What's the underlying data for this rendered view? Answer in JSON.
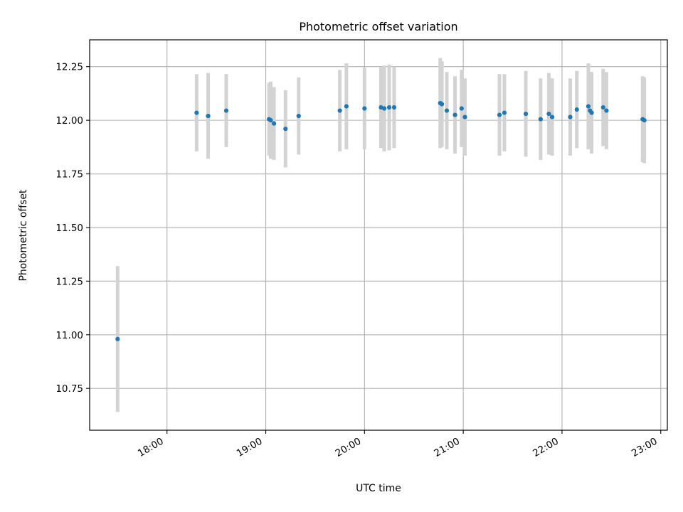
{
  "chart_data": {
    "type": "scatter",
    "title": "Photometric offset variation",
    "xlabel": "UTC time",
    "ylabel": "Photometric offset",
    "x_unit": "UTC hours",
    "xlim": [
      "17:13",
      "23:04"
    ],
    "ylim": [
      10.555,
      12.375
    ],
    "grid": true,
    "x_ticks": [
      "18:00",
      "19:00",
      "20:00",
      "21:00",
      "22:00",
      "23:00"
    ],
    "y_ticks": [
      "10.75",
      "11.00",
      "11.25",
      "11.50",
      "11.75",
      "12.00",
      "12.25"
    ],
    "marker_color": "#1f77b4",
    "errorbar_color": "#d3d3d3",
    "points": [
      {
        "x": "17:30",
        "y": 10.98,
        "yerr": 0.34
      },
      {
        "x": "18:18",
        "y": 12.035,
        "yerr": 0.18
      },
      {
        "x": "18:25",
        "y": 12.02,
        "yerr": 0.2
      },
      {
        "x": "18:36",
        "y": 12.045,
        "yerr": 0.17
      },
      {
        "x": "19:02",
        "y": 12.005,
        "yerr": 0.17
      },
      {
        "x": "19:03",
        "y": 12.0,
        "yerr": 0.18
      },
      {
        "x": "19:05",
        "y": 11.985,
        "yerr": 0.17
      },
      {
        "x": "19:12",
        "y": 11.96,
        "yerr": 0.18
      },
      {
        "x": "19:20",
        "y": 12.02,
        "yerr": 0.18
      },
      {
        "x": "19:45",
        "y": 12.045,
        "yerr": 0.19
      },
      {
        "x": "19:49",
        "y": 12.065,
        "yerr": 0.2
      },
      {
        "x": "20:00",
        "y": 12.055,
        "yerr": 0.19
      },
      {
        "x": "20:10",
        "y": 12.06,
        "yerr": 0.19
      },
      {
        "x": "20:12",
        "y": 12.055,
        "yerr": 0.2
      },
      {
        "x": "20:15",
        "y": 12.06,
        "yerr": 0.2
      },
      {
        "x": "20:18",
        "y": 12.06,
        "yerr": 0.19
      },
      {
        "x": "20:46",
        "y": 12.08,
        "yerr": 0.21
      },
      {
        "x": "20:47",
        "y": 12.075,
        "yerr": 0.2
      },
      {
        "x": "20:50",
        "y": 12.045,
        "yerr": 0.18
      },
      {
        "x": "20:55",
        "y": 12.025,
        "yerr": 0.18
      },
      {
        "x": "20:59",
        "y": 12.055,
        "yerr": 0.18
      },
      {
        "x": "21:01",
        "y": 12.015,
        "yerr": 0.18
      },
      {
        "x": "21:22",
        "y": 12.025,
        "yerr": 0.19
      },
      {
        "x": "21:25",
        "y": 12.035,
        "yerr": 0.18
      },
      {
        "x": "21:38",
        "y": 12.03,
        "yerr": 0.2
      },
      {
        "x": "21:47",
        "y": 12.005,
        "yerr": 0.19
      },
      {
        "x": "21:52",
        "y": 12.03,
        "yerr": 0.19
      },
      {
        "x": "21:54",
        "y": 12.015,
        "yerr": 0.18
      },
      {
        "x": "22:05",
        "y": 12.015,
        "yerr": 0.18
      },
      {
        "x": "22:09",
        "y": 12.05,
        "yerr": 0.18
      },
      {
        "x": "22:16",
        "y": 12.065,
        "yerr": 0.2
      },
      {
        "x": "22:17",
        "y": 12.045,
        "yerr": 0.18
      },
      {
        "x": "22:18",
        "y": 12.035,
        "yerr": 0.19
      },
      {
        "x": "22:25",
        "y": 12.06,
        "yerr": 0.18
      },
      {
        "x": "22:27",
        "y": 12.045,
        "yerr": 0.18
      },
      {
        "x": "22:49",
        "y": 12.005,
        "yerr": 0.2
      },
      {
        "x": "22:50",
        "y": 12.0,
        "yerr": 0.2
      }
    ]
  }
}
